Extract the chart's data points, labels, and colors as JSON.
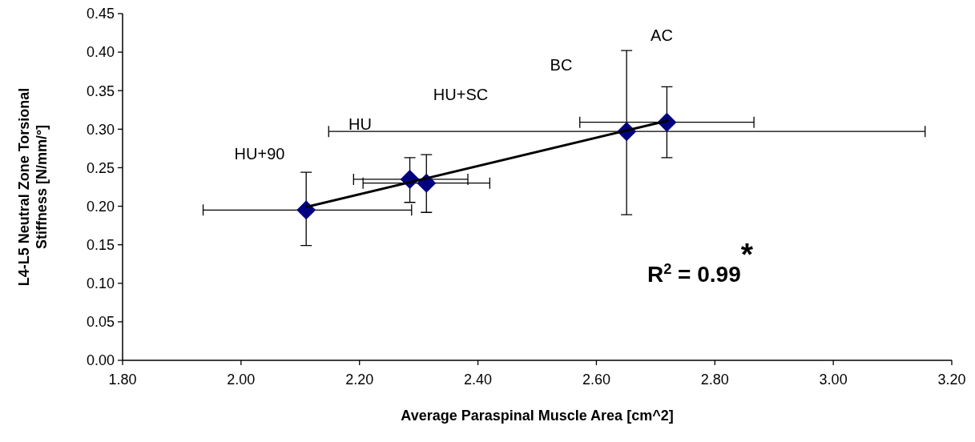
{
  "chart_data": {
    "type": "scatter",
    "xlabel": "Average Paraspinal Muscle Area [cm^2]",
    "ylabel": "L4-L5 Neutral Zone Torsional Stiffness [N/mm/°]",
    "xlim": [
      1.8,
      3.2
    ],
    "xticks": [
      {
        "value": 1.8,
        "label": "1.80"
      },
      {
        "value": 2.0,
        "label": "2.00"
      },
      {
        "value": 2.2,
        "label": "2.20"
      },
      {
        "value": 2.4,
        "label": "2.40"
      },
      {
        "value": 2.6,
        "label": "2.60"
      },
      {
        "value": 2.8,
        "label": "2.80"
      },
      {
        "value": 3.0,
        "label": "3.00"
      },
      {
        "value": 3.2,
        "label": "3.20"
      }
    ],
    "ylim": [
      0,
      0.45
    ],
    "yticks": [
      {
        "value": 0,
        "label": "0.00"
      },
      {
        "value": 0.05,
        "label": "0.05"
      },
      {
        "value": 0.1,
        "label": "0.10"
      },
      {
        "value": 0.15,
        "label": "0.15"
      },
      {
        "value": 0.2,
        "label": "0.20"
      },
      {
        "value": 0.25,
        "label": "0.25"
      },
      {
        "value": 0.3,
        "label": "0.30"
      },
      {
        "value": 0.35,
        "label": "0.35"
      },
      {
        "value": 0.4,
        "label": "0.40"
      },
      {
        "value": 0.45,
        "label": "0.45"
      }
    ],
    "grid": false,
    "series": [
      {
        "type": "line",
        "color": "#000000",
        "marker": "none",
        "line_style": "solid",
        "x": [
          2.11,
          2.72
        ],
        "values": [
          0.199,
          0.311
        ]
      },
      {
        "color": "#000080",
        "marker": "diamond",
        "x": [
          2.11,
          2.285,
          2.313,
          2.651,
          2.719
        ],
        "values": [
          0.195,
          0.235,
          0.23,
          0.297,
          0.309
        ],
        "errors": [
          [
            0.149,
            0.244
          ],
          [
            0.205,
            0.263
          ],
          [
            0.192,
            0.267
          ],
          [
            0.189,
            0.402
          ],
          [
            0.263,
            0.355
          ]
        ],
        "xerrors": [
          [
            1.936,
            2.288
          ],
          [
            2.19,
            2.383
          ],
          [
            2.206,
            2.42
          ],
          [
            2.148,
            3.155
          ],
          [
            2.572,
            2.866
          ]
        ]
      }
    ],
    "annotations": [
      "HU+90",
      "HU",
      "HU+SC",
      "BC",
      "AC",
      "R$^{2}$ = 0.99$^{*}$"
    ]
  }
}
